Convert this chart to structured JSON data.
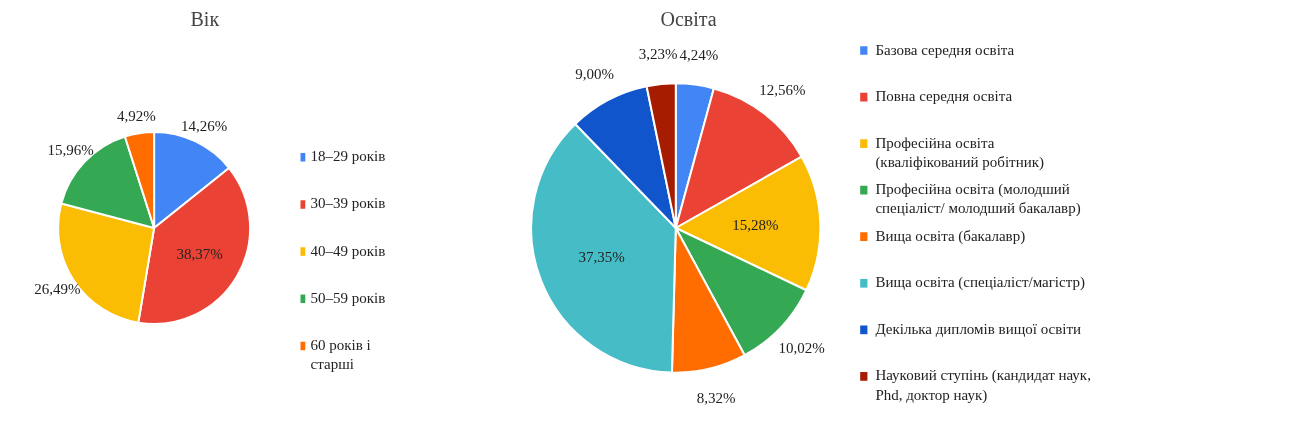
{
  "chart_data": [
    {
      "type": "pie",
      "title": "Вік",
      "legend": "right",
      "data_labels": true,
      "categories": [
        "18–29 років",
        "30–39 років",
        "40–49 років",
        "50–59 років",
        "60 років і старші"
      ],
      "values": [
        14.26,
        38.37,
        26.49,
        15.96,
        4.92
      ],
      "value_labels": [
        "14,26%",
        "38,37%",
        "26,49%",
        "15,96%",
        "4,92%"
      ],
      "colors": [
        "#4285f4",
        "#ea4335",
        "#fbbc04",
        "#34a853",
        "#ff6d01"
      ]
    },
    {
      "type": "pie",
      "title": "Освіта",
      "legend": "right",
      "data_labels": true,
      "categories": [
        "Базова середня освіта",
        "Повна середня освіта",
        "Професійна освіта (кваліфікований робітник)",
        "Професійна освіта (молодший спеціаліст/ молодший бакалавр)",
        "Вища освіта (бакалавр)",
        "Вища освіта (спеціаліст/магістр)",
        "Декілька дипломів вищої освіти",
        "Науковий ступінь (кандидат наук, Phd, доктор наук)"
      ],
      "values": [
        4.24,
        12.56,
        15.28,
        10.02,
        8.32,
        37.35,
        9.0,
        3.23
      ],
      "value_labels": [
        "4,24%",
        "12,56%",
        "15,28%",
        "10,02%",
        "8,32%",
        "37,35%",
        "9,00%",
        "3,23%"
      ],
      "colors": [
        "#4285f4",
        "#ea4335",
        "#fbbc04",
        "#34a853",
        "#ff6d01",
        "#46bdc6",
        "#1155cc",
        "#a61c00"
      ]
    }
  ]
}
